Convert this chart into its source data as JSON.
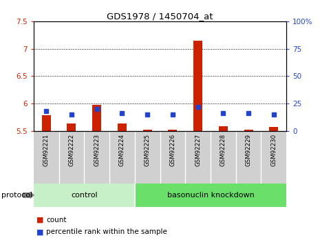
{
  "title": "GDS1978 / 1450704_at",
  "samples": [
    "GSM92221",
    "GSM92222",
    "GSM92223",
    "GSM92224",
    "GSM92225",
    "GSM92226",
    "GSM92227",
    "GSM92228",
    "GSM92229",
    "GSM92230"
  ],
  "count_values": [
    5.79,
    5.63,
    5.97,
    5.63,
    5.52,
    5.52,
    7.15,
    5.58,
    5.52,
    5.57
  ],
  "percentile_values": [
    18,
    15,
    20,
    16,
    15,
    15,
    22,
    16,
    16,
    15
  ],
  "ylim_left": [
    5.5,
    7.5
  ],
  "ylim_right": [
    0,
    100
  ],
  "yticks_left": [
    5.5,
    6.0,
    6.5,
    7.0,
    7.5
  ],
  "yticks_right": [
    0,
    25,
    50,
    75,
    100
  ],
  "ytick_labels_right": [
    "0",
    "25",
    "50",
    "75",
    "100%"
  ],
  "bar_width": 0.35,
  "count_color": "#cc2200",
  "percentile_color": "#2244cc",
  "plot_bg_color": "#ffffff",
  "label_bg_color": "#d0d0d0",
  "control_color": "#c8f0c8",
  "knockdown_color": "#6adf6a",
  "protocol_label": "protocol",
  "groups": [
    {
      "label": "control",
      "start": 0,
      "end": 3
    },
    {
      "label": "basonuclin knockdown",
      "start": 4,
      "end": 9
    }
  ],
  "legend_items": [
    {
      "label": "count",
      "color": "#cc2200"
    },
    {
      "label": "percentile rank within the sample",
      "color": "#2244cc"
    }
  ],
  "base_value": 5.5,
  "grid_ticks": [
    6.0,
    6.5,
    7.0
  ]
}
